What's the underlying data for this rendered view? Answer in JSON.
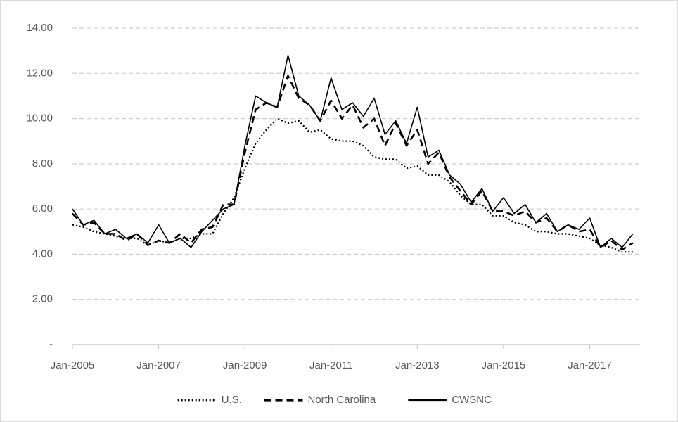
{
  "chart_data": {
    "type": "line",
    "x": [
      "Jan-2005",
      "Apr-2005",
      "Jul-2005",
      "Oct-2005",
      "Jan-2006",
      "Apr-2006",
      "Jul-2006",
      "Oct-2006",
      "Jan-2007",
      "Apr-2007",
      "Jul-2007",
      "Oct-2007",
      "Jan-2008",
      "Apr-2008",
      "Jul-2008",
      "Oct-2008",
      "Jan-2009",
      "Apr-2009",
      "Jul-2009",
      "Oct-2009",
      "Jan-2010",
      "Apr-2010",
      "Jul-2010",
      "Oct-2010",
      "Jan-2011",
      "Apr-2011",
      "Jul-2011",
      "Oct-2011",
      "Jan-2012",
      "Apr-2012",
      "Jul-2012",
      "Oct-2012",
      "Jan-2013",
      "Apr-2013",
      "Jul-2013",
      "Oct-2013",
      "Jan-2014",
      "Apr-2014",
      "Jul-2014",
      "Oct-2014",
      "Jan-2015",
      "Apr-2015",
      "Jul-2015",
      "Oct-2015",
      "Jan-2016",
      "Apr-2016",
      "Jul-2016",
      "Oct-2016",
      "Jan-2017",
      "Apr-2017",
      "Jul-2017",
      "Oct-2017",
      "Jan-2018"
    ],
    "series": [
      {
        "name": "U.S.",
        "color": "#000000",
        "dash": "dotted",
        "values": [
          5.3,
          5.2,
          5.0,
          4.9,
          4.8,
          4.7,
          4.7,
          4.4,
          4.6,
          4.5,
          4.7,
          4.7,
          4.9,
          4.9,
          5.8,
          6.5,
          7.8,
          8.9,
          9.5,
          10.0,
          9.8,
          9.9,
          9.4,
          9.5,
          9.1,
          9.0,
          9.0,
          8.8,
          8.3,
          8.2,
          8.2,
          7.8,
          7.9,
          7.5,
          7.5,
          7.2,
          6.6,
          6.2,
          6.2,
          5.7,
          5.7,
          5.4,
          5.3,
          5.0,
          5.0,
          4.9,
          4.9,
          4.8,
          4.7,
          4.4,
          4.3,
          4.1,
          4.1
        ]
      },
      {
        "name": "North Carolina",
        "color": "#000000",
        "dash": "dashed",
        "values": [
          5.8,
          5.3,
          5.4,
          4.9,
          4.9,
          4.6,
          4.9,
          4.4,
          4.6,
          4.5,
          4.9,
          4.5,
          5.1,
          5.2,
          6.2,
          6.2,
          8.5,
          10.4,
          10.7,
          10.5,
          11.9,
          10.9,
          10.6,
          9.9,
          10.8,
          10.0,
          10.6,
          9.6,
          10.0,
          8.8,
          9.8,
          8.8,
          9.5,
          8.0,
          8.5,
          7.4,
          6.8,
          6.2,
          6.8,
          5.9,
          5.9,
          5.7,
          5.9,
          5.4,
          5.6,
          5.0,
          5.3,
          5.0,
          5.1,
          4.3,
          4.6,
          4.2,
          4.5
        ]
      },
      {
        "name": "CWSNC",
        "color": "#000000",
        "dash": "solid",
        "values": [
          6.0,
          5.3,
          5.5,
          4.9,
          5.1,
          4.7,
          4.9,
          4.5,
          5.3,
          4.5,
          4.7,
          4.3,
          5.0,
          5.5,
          6.0,
          6.2,
          8.8,
          11.0,
          10.7,
          10.5,
          12.8,
          11.0,
          10.6,
          9.9,
          11.8,
          10.4,
          10.7,
          10.1,
          10.9,
          9.3,
          9.9,
          8.9,
          10.5,
          8.3,
          8.6,
          7.5,
          7.1,
          6.3,
          6.9,
          5.9,
          6.5,
          5.8,
          6.2,
          5.4,
          5.8,
          5.0,
          5.3,
          5.1,
          5.6,
          4.3,
          4.7,
          4.3,
          4.9
        ]
      }
    ],
    "xlim": [
      "Jan-2005",
      "Mar-2018"
    ],
    "xticks": [
      "Jan-2005",
      "Jan-2007",
      "Jan-2009",
      "Jan-2011",
      "Jan-2013",
      "Jan-2015",
      "Jan-2017"
    ],
    "ylim": [
      0,
      14
    ],
    "yticks": [
      {
        "value": 0,
        "label": "-"
      },
      {
        "value": 2,
        "label": "2.00"
      },
      {
        "value": 4,
        "label": "4.00"
      },
      {
        "value": 6,
        "label": "6.00"
      },
      {
        "value": 8,
        "label": "8.00"
      },
      {
        "value": 10,
        "label": "10.00"
      },
      {
        "value": 12,
        "label": "12.00"
      },
      {
        "value": 14,
        "label": "14.00"
      }
    ],
    "grid": true,
    "legend": "bottom"
  }
}
